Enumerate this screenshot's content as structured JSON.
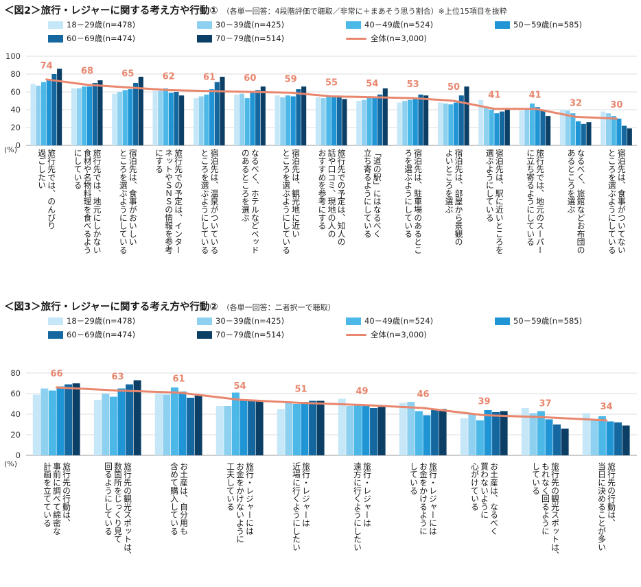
{
  "chart_data": [
    {
      "type": "bar",
      "title": "＜図2＞旅行・レジャーに関する考え方や行動①",
      "subtitle": "（各単一回答：4段階評価で聴取／非常に＋まあそう思う割合）※上位15項目を抜粋",
      "ylim": [
        0,
        100
      ],
      "yticks": [
        "0",
        "20",
        "40",
        "60",
        "80",
        "100"
      ],
      "unit_label": "(%)",
      "categories": [
        "旅行先では、のんびり\n過ごしたい",
        "旅行先では、地元にしかない\n食材や名物料理を食べるよう\nにしている",
        "宿泊先は、食事がおいしい\nところを選ぶようにしている",
        "旅行先での予定は、インター\nネットやＳＮＳの情報を参考\nにする",
        "宿泊先は、温泉がついている\nところを選ぶようにしている",
        "なるべく、ホテルなどベッド\nのあるところを選ぶ",
        "宿泊先は、観光地に近い\nところを選ぶようにしている",
        "旅行先での予定は、知人の\n話や口コミ、現地の人の\nおすすめを参考にする",
        "「道の駅」にはなるべく\n立ち寄るようにしている",
        "宿泊先は、駐車場のあるとこ\nろを選ぶようにしている",
        "宿泊先は、部屋から景観の\nよいところを選ぶ",
        "宿泊先は、駅に近いところを\n選ぶようにしている",
        "旅行先では、地元のスーパー\nに立ち寄るようにしている",
        "なるべく、旅館などお布団の\nあるところを選ぶ",
        "宿泊先は、食事がついてない\nところを選ぶようにしている"
      ],
      "series": [
        {
          "name": "18－29歳(n=478)",
          "color": "#c6e7f8",
          "values": [
            69,
            64,
            58,
            61,
            53,
            57,
            56,
            54,
            50,
            48,
            48,
            51,
            39,
            40,
            38
          ]
        },
        {
          "name": "30－39歳(n=425)",
          "color": "#8ed0ef",
          "values": [
            67,
            64,
            60,
            61,
            55,
            58,
            54,
            53,
            51,
            50,
            47,
            42,
            40,
            39,
            36
          ]
        },
        {
          "name": "40－49歳(n=524)",
          "color": "#4cb8e8",
          "values": [
            71,
            66,
            62,
            64,
            57,
            53,
            56,
            55,
            54,
            51,
            46,
            40,
            47,
            36,
            33
          ]
        },
        {
          "name": "50－59歳(n=585)",
          "color": "#1f95d6",
          "values": [
            73,
            66,
            63,
            59,
            63,
            59,
            55,
            55,
            55,
            52,
            48,
            36,
            43,
            27,
            30
          ]
        },
        {
          "name": "60－69歳(n=474)",
          "color": "#14689f",
          "values": [
            80,
            70,
            70,
            60,
            71,
            62,
            63,
            54,
            57,
            57,
            56,
            38,
            40,
            24,
            22
          ]
        },
        {
          "name": "70－79歳(n=514)",
          "color": "#0b3f66",
          "values": [
            86,
            73,
            77,
            56,
            77,
            66,
            66,
            52,
            64,
            56,
            66,
            41,
            33,
            26,
            19
          ]
        }
      ],
      "total": {
        "name": "全体(n=3,000)",
        "color": "#e8866e",
        "values": [
          74,
          68,
          65,
          62,
          61,
          60,
          59,
          55,
          54,
          53,
          50,
          41,
          41,
          32,
          30
        ]
      }
    },
    {
      "type": "bar",
      "title": "＜図3＞旅行・レジャーに関する考え方や行動②",
      "subtitle": "（各単一回答：二者択一で聴取）",
      "ylim": [
        0,
        80
      ],
      "yticks": [
        "0",
        "20",
        "40",
        "60",
        "80"
      ],
      "unit_label": "(%)",
      "categories": [
        "旅行先の行動は、\n事前に調べて綿密な\n計画を立てている",
        "旅行先の観光スポットは、\n数箇所をじっくり見て\n回るようにしている",
        "お土産は、自分用も\n含めて購入している",
        "旅行・レジャーには\nお金をかけないように\n工夫している",
        "旅行・レジャーは\n近場に行くようにしたい",
        "旅行・レジャーは\n遠方に行くようにしたい",
        "旅行・レジャーには\nお金をかけるように\nしている",
        "お土産は、なるべく\n買わないように\n心がけている",
        "旅行先の観光スポットは、\nもれなく回るように\nしている",
        "旅行先の行動は、\n当日に決めることが多い"
      ],
      "series": [
        {
          "name": "18－29歳(n=478)",
          "color": "#c6e7f8",
          "values": [
            59,
            54,
            60,
            48,
            45,
            55,
            51,
            36,
            46,
            41
          ]
        },
        {
          "name": "30－39歳(n=425)",
          "color": "#8ed0ef",
          "values": [
            65,
            60,
            59,
            48,
            51,
            48,
            52,
            40,
            41,
            35
          ]
        },
        {
          "name": "40－49歳(n=524)",
          "color": "#4cb8e8",
          "values": [
            63,
            57,
            66,
            61,
            50,
            49,
            43,
            34,
            43,
            38
          ]
        },
        {
          "name": "50－59歳(n=585)",
          "color": "#1f95d6",
          "values": [
            67,
            65,
            62,
            54,
            52,
            48,
            39,
            44,
            35,
            33
          ]
        },
        {
          "name": "60－69歳(n=474)",
          "color": "#14689f",
          "values": [
            69,
            69,
            56,
            54,
            53,
            46,
            44,
            42,
            30,
            32
          ]
        },
        {
          "name": "70－79歳(n=514)",
          "color": "#0b3f66",
          "values": [
            70,
            73,
            58,
            53,
            53,
            47,
            45,
            43,
            26,
            29
          ]
        }
      ],
      "total": {
        "name": "全体(n=3,000)",
        "color": "#e8866e",
        "values": [
          66,
          63,
          61,
          54,
          51,
          49,
          46,
          39,
          37,
          34
        ]
      }
    }
  ]
}
